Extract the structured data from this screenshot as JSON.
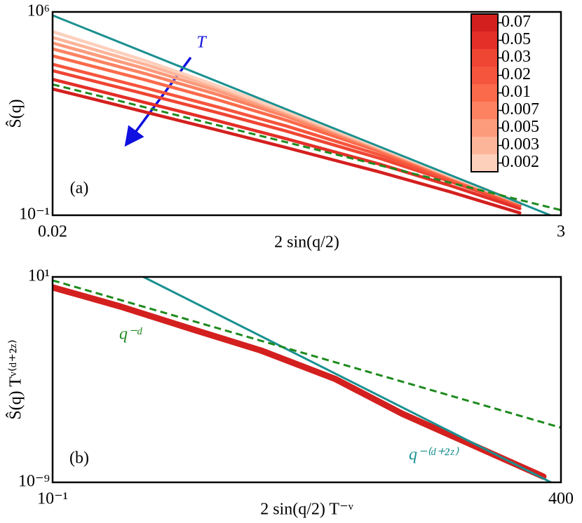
{
  "chart_data": [
    {
      "type": "line",
      "xscale": "log",
      "yscale": "log",
      "xlim": [
        0.02,
        3
      ],
      "ylim": [
        0.1,
        1000000
      ],
      "xticks": [
        0.02,
        3
      ],
      "yticks": [
        {
          "value": 1000000,
          "label": "10⁶"
        },
        {
          "value": 0.1,
          "label": "10⁻¹"
        }
      ],
      "xlabel": "2 sin(q/2)",
      "ylabel": "Ŝ(q)",
      "annotations": [
        "(a)",
        "T"
      ],
      "series": [
        {
          "name": "0.07",
          "color": "#d3201f",
          "x": [
            0.02,
            0.05,
            0.1,
            0.2,
            0.5,
            1,
            2
          ],
          "values": [
            2230,
            355,
            88,
            21.3,
            3.1,
            0.65,
            0.12
          ]
        },
        {
          "name": "0.05",
          "color": "#e32f27",
          "x": [
            0.02,
            0.05,
            0.1,
            0.2,
            0.5,
            1,
            2
          ],
          "values": [
            4770,
            753,
            184,
            43,
            5.8,
            1.07,
            0.17
          ]
        },
        {
          "name": "0.03",
          "color": "#ef4533",
          "x": [
            0.02,
            0.05,
            0.1,
            0.2,
            0.5,
            1,
            2
          ],
          "values": [
            9480,
            1480,
            352,
            79,
            9.2,
            1.48,
            0.21
          ]
        },
        {
          "name": "0.02",
          "color": "#f6553d",
          "x": [
            0.02,
            0.05,
            0.1,
            0.2,
            0.5,
            1,
            2
          ],
          "values": [
            15700,
            2400,
            555,
            118,
            12.1,
            1.75,
            0.23
          ]
        },
        {
          "name": "0.01",
          "color": "#fb6a4a",
          "x": [
            0.02,
            0.05,
            0.1,
            0.2,
            0.5,
            1,
            2
          ],
          "values": [
            30700,
            4530,
            981,
            187,
            15.9,
            2.0,
            0.25
          ]
        },
        {
          "name": "0.007",
          "color": "#fc8262",
          "x": [
            0.02,
            0.05,
            0.1,
            0.2,
            0.5,
            1,
            2
          ],
          "values": [
            53500,
            7450,
            1490,
            253,
            18.4,
            2.2,
            0.26
          ]
        },
        {
          "name": "0.005",
          "color": "#fc9b7c",
          "x": [
            0.02,
            0.05,
            0.1,
            0.2,
            0.5,
            1,
            2
          ],
          "values": [
            85200,
            11000,
            2000,
            306,
            20,
            2.26,
            0.26
          ]
        },
        {
          "name": "0.003",
          "color": "#fdb59a",
          "x": [
            0.02,
            0.05,
            0.1,
            0.2,
            0.5,
            1,
            2
          ],
          "values": [
            132000,
            15500,
            2540,
            351,
            21,
            2.3,
            0.27
          ]
        },
        {
          "name": "0.002",
          "color": "#fdd0bc",
          "x": [
            0.02,
            0.05,
            0.1,
            0.2,
            0.5,
            1,
            2
          ],
          "values": [
            209000,
            20900,
            3000,
            389,
            22,
            2.3,
            0.27
          ]
        }
      ],
      "fits": [
        {
          "color": "#1a9090",
          "style": "solid",
          "x": [
            0.02,
            2.7
          ],
          "values": [
            760000,
            0.1
          ]
        },
        {
          "color": "#1e8a1e",
          "style": "dashed",
          "x": [
            0.02,
            3
          ],
          "values": [
            3200,
            0.15
          ]
        }
      ]
    },
    {
      "type": "line",
      "xscale": "log",
      "yscale": "log",
      "xlim": [
        0.1,
        400
      ],
      "ylim": [
        1e-09,
        10
      ],
      "xticks": [
        {
          "value": 0.1,
          "label": "10⁻¹"
        },
        400
      ],
      "yticks": [
        {
          "value": 10,
          "label": "10¹"
        },
        {
          "value": 1e-09,
          "label": "10⁻⁹"
        }
      ],
      "xlabel": "2 sin(q/2) T⁻ᵛ",
      "ylabel": "Ŝ(q) Tᵛ⁽ᵈ⁺²ᶻ⁾",
      "annotations": [
        "(b)"
      ],
      "series": [
        {
          "color": "#d3201f",
          "x": [
            0.1,
            0.3,
            1,
            3,
            10,
            30,
            100,
            300
          ],
          "values": [
            3.1,
            0.37,
            0.027,
            0.0026,
            0.00011,
            2.2e-06,
            5.5e-08,
            1.9e-09
          ]
        }
      ],
      "fits": [
        {
          "name": "q⁻⁽ᵈ⁺²ᶻ⁾",
          "color": "#1a9090",
          "style": "solid",
          "x": [
            0.44,
            340
          ],
          "values": [
            10,
            1e-09
          ]
        },
        {
          "name": "q⁻ᵈ",
          "color": "#1e8a1e",
          "style": "dashed",
          "x": [
            0.1,
            400
          ],
          "values": [
            6.8,
            4.6e-07
          ]
        }
      ]
    }
  ]
}
